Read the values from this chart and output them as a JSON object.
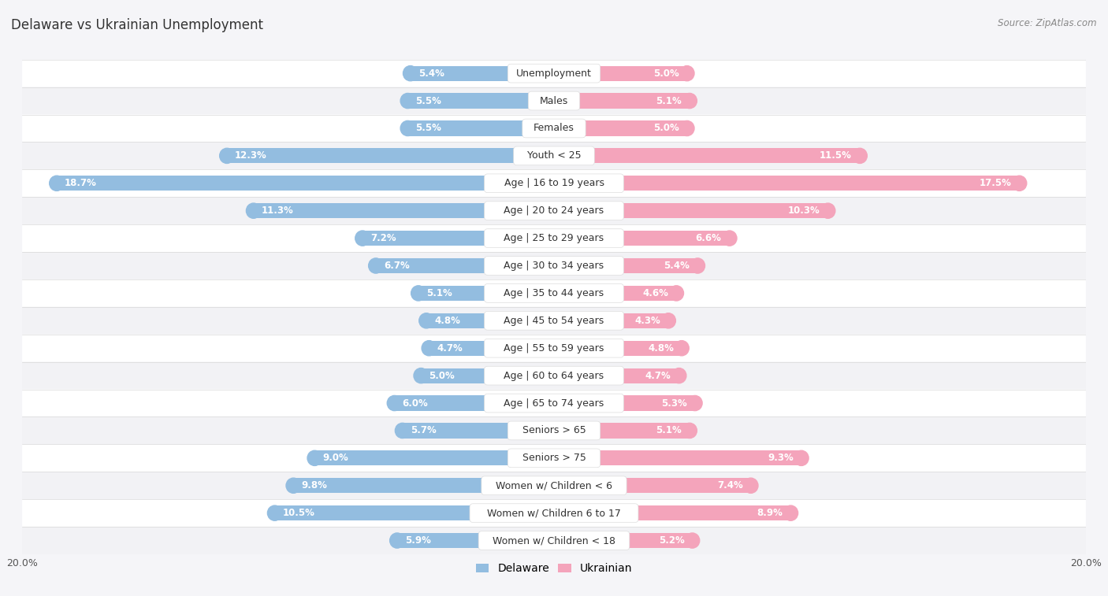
{
  "title": "Delaware vs Ukrainian Unemployment",
  "source": "Source: ZipAtlas.com",
  "categories": [
    "Unemployment",
    "Males",
    "Females",
    "Youth < 25",
    "Age | 16 to 19 years",
    "Age | 20 to 24 years",
    "Age | 25 to 29 years",
    "Age | 30 to 34 years",
    "Age | 35 to 44 years",
    "Age | 45 to 54 years",
    "Age | 55 to 59 years",
    "Age | 60 to 64 years",
    "Age | 65 to 74 years",
    "Seniors > 65",
    "Seniors > 75",
    "Women w/ Children < 6",
    "Women w/ Children 6 to 17",
    "Women w/ Children < 18"
  ],
  "delaware_values": [
    5.4,
    5.5,
    5.5,
    12.3,
    18.7,
    11.3,
    7.2,
    6.7,
    5.1,
    4.8,
    4.7,
    5.0,
    6.0,
    5.7,
    9.0,
    9.8,
    10.5,
    5.9
  ],
  "ukrainian_values": [
    5.0,
    5.1,
    5.0,
    11.5,
    17.5,
    10.3,
    6.6,
    5.4,
    4.6,
    4.3,
    4.8,
    4.7,
    5.3,
    5.1,
    9.3,
    7.4,
    8.9,
    5.2
  ],
  "delaware_color": "#93bde0",
  "ukrainian_color": "#f4a4bb",
  "bg_white": "#ffffff",
  "bg_light": "#f2f2f5",
  "bg_figure": "#f5f5f8",
  "max_value": 20.0,
  "label_fontsize": 9.0,
  "value_fontsize": 8.5,
  "title_fontsize": 12,
  "legend_labels": [
    "Delaware",
    "Ukrainian"
  ]
}
